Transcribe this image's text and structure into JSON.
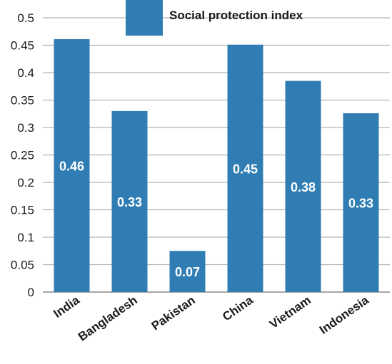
{
  "chart_data": {
    "type": "bar",
    "title": "",
    "xlabel": "",
    "ylabel": "",
    "categories": [
      "India",
      "Bangladesh",
      "Pakistan",
      "China",
      "Vietnam",
      "Indonesia"
    ],
    "series": [
      {
        "name": "Social protection index",
        "values": [
          0.461,
          0.33,
          0.075,
          0.451,
          0.385,
          0.326
        ],
        "data_labels": [
          "0.46",
          "0.33",
          "0.07",
          "0.45",
          "0.38",
          "0.33"
        ]
      }
    ],
    "ylim": [
      0,
      0.5
    ],
    "yticks": [
      "0",
      "0.05",
      "0.1",
      "0.15",
      "0.2",
      "0.25",
      "0.3",
      "0.35",
      "0.4",
      "0.45",
      "0.5"
    ],
    "grid": true,
    "legend_position": "top",
    "colors": {
      "bar": "#2f7db3",
      "grid": "#b3b3b3",
      "axis": "#888888"
    }
  }
}
